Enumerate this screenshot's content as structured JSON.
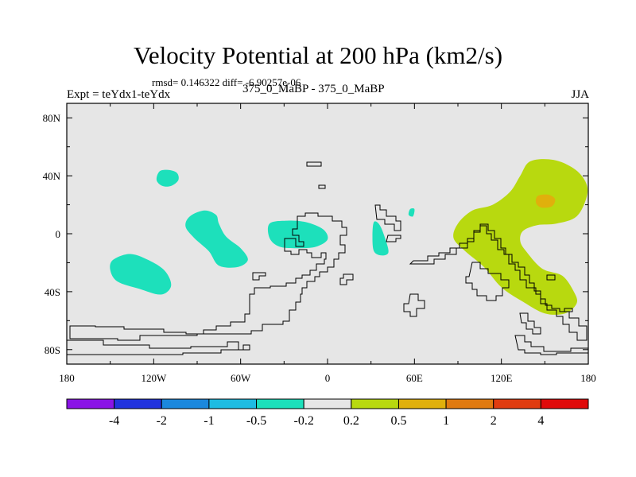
{
  "chart_data": {
    "type": "contour-map",
    "title": "Velocity Potential at 200 hPa (km2/s)",
    "stats_text": "rmsd= 0.146322 diff= -6.90257e-06",
    "experiment_label": "Expt = teYdx1-teYdx",
    "experiments_text": "375_0_MaBP - 375_0_MaBP",
    "season": "JJA",
    "lon_range": [
      -180,
      180
    ],
    "lat_range": [
      -90,
      90
    ],
    "x_ticks": [
      {
        "value": -180,
        "label": "180"
      },
      {
        "value": -120,
        "label": "120W"
      },
      {
        "value": -60,
        "label": "60W"
      },
      {
        "value": 0,
        "label": "0"
      },
      {
        "value": 60,
        "label": "60E"
      },
      {
        "value": 120,
        "label": "120E"
      },
      {
        "value": 180,
        "label": "180"
      }
    ],
    "y_ticks": [
      {
        "value": 80,
        "label": "80N"
      },
      {
        "value": 40,
        "label": "40N"
      },
      {
        "value": 0,
        "label": "0"
      },
      {
        "value": -40,
        "label": "40S"
      },
      {
        "value": -80,
        "label": "80S"
      }
    ],
    "colorbar": {
      "labels": [
        "-4",
        "-2",
        "-1",
        "-0.5",
        "-0.2",
        "0.2",
        "0.5",
        "1",
        "2",
        "4"
      ],
      "colors": [
        "#8a14e6",
        "#2233dd",
        "#1b88dd",
        "#1ebce2",
        "#1de0bb",
        "#e6e6e6",
        "#b8d90f",
        "#e0b00c",
        "#e07a10",
        "#e03c10",
        "#e00a0a"
      ]
    },
    "regions": [
      {
        "name": "negative-anomaly-north-atlantic",
        "bin": "-0.5 to -0.2",
        "color": "#1de0bb",
        "polygon": [
          [
            -116,
            43
          ],
          [
            -110,
            44
          ],
          [
            -104,
            42
          ],
          [
            -103,
            37
          ],
          [
            -108,
            33
          ],
          [
            -114,
            33
          ],
          [
            -118,
            37
          ]
        ]
      },
      {
        "name": "negative-anomaly-south-pacific",
        "bin": "-0.5 to -0.2",
        "color": "#1de0bb",
        "polygon": [
          [
            -148,
            -18
          ],
          [
            -136,
            -14
          ],
          [
            -122,
            -19
          ],
          [
            -112,
            -26
          ],
          [
            -108,
            -36
          ],
          [
            -115,
            -42
          ],
          [
            -130,
            -38
          ],
          [
            -145,
            -33
          ],
          [
            -150,
            -25
          ]
        ]
      },
      {
        "name": "negative-anomaly-central-pacific",
        "bin": "-0.5 to -0.2",
        "color": "#1de0bb",
        "polygon": [
          [
            -95,
            12
          ],
          [
            -85,
            16
          ],
          [
            -77,
            13
          ],
          [
            -75,
            7
          ],
          [
            -70,
            -2
          ],
          [
            -60,
            -10
          ],
          [
            -55,
            -18
          ],
          [
            -62,
            -23
          ],
          [
            -75,
            -22
          ],
          [
            -82,
            -12
          ],
          [
            -92,
            -3
          ],
          [
            -98,
            5
          ]
        ]
      },
      {
        "name": "negative-anomaly-atlantic",
        "bin": "-0.5 to -0.2",
        "color": "#1de0bb",
        "polygon": [
          [
            -40,
            7
          ],
          [
            -28,
            9
          ],
          [
            -15,
            8
          ],
          [
            -3,
            3
          ],
          [
            0,
            -4
          ],
          [
            -8,
            -9
          ],
          [
            -20,
            -10
          ],
          [
            -33,
            -9
          ],
          [
            -40,
            -3
          ]
        ]
      },
      {
        "name": "negative-anomaly-africa",
        "bin": "-0.5 to -0.2",
        "color": "#1de0bb",
        "polygon": [
          [
            32,
            8
          ],
          [
            36,
            6
          ],
          [
            40,
            -4
          ],
          [
            42,
            -13
          ],
          [
            37,
            -15
          ],
          [
            32,
            -12
          ],
          [
            31,
            -2
          ]
        ]
      },
      {
        "name": "negative-anomaly-arabia",
        "bin": "-0.5 to -0.2",
        "color": "#1de0bb",
        "polygon": [
          [
            57,
            17
          ],
          [
            60,
            17
          ],
          [
            59,
            12
          ],
          [
            56,
            13
          ]
        ]
      },
      {
        "name": "positive-anomaly-asia-pacific",
        "bin": "0.2 to 0.5",
        "color": "#b8d90f",
        "polygon": [
          [
            140,
            50
          ],
          [
            156,
            51
          ],
          [
            170,
            45
          ],
          [
            178,
            36
          ],
          [
            179,
            26
          ],
          [
            172,
            12
          ],
          [
            158,
            7
          ],
          [
            145,
            6
          ],
          [
            135,
            2
          ],
          [
            133,
            -5
          ],
          [
            137,
            -12
          ],
          [
            148,
            -24
          ],
          [
            162,
            -29
          ],
          [
            170,
            -40
          ],
          [
            172,
            -48
          ],
          [
            164,
            -55
          ],
          [
            150,
            -55
          ],
          [
            135,
            -47
          ],
          [
            120,
            -37
          ],
          [
            108,
            -23
          ],
          [
            95,
            -12
          ],
          [
            87,
            -3
          ],
          [
            90,
            7
          ],
          [
            100,
            16
          ],
          [
            114,
            20
          ],
          [
            126,
            29
          ],
          [
            133,
            40
          ]
        ]
      },
      {
        "name": "positive-anomaly-core",
        "bin": "0.5 to 1",
        "color": "#e0b00c",
        "polygon": [
          [
            145,
            26
          ],
          [
            152,
            27
          ],
          [
            157,
            24
          ],
          [
            155,
            19
          ],
          [
            148,
            18
          ],
          [
            144,
            21
          ]
        ]
      }
    ]
  }
}
